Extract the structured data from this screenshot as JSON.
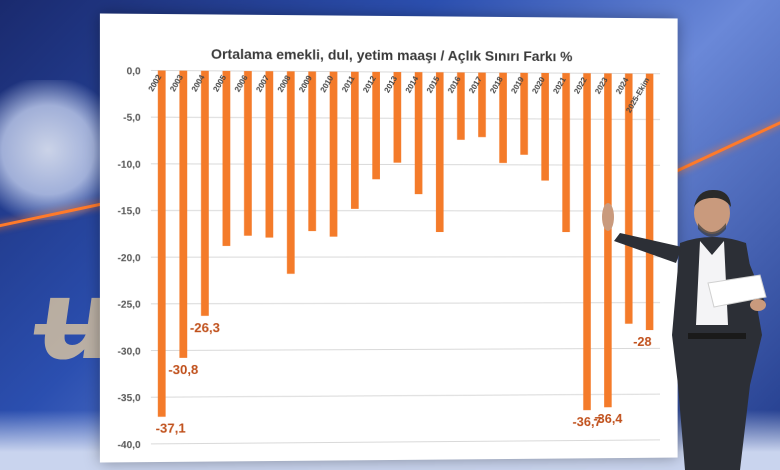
{
  "chart_data": {
    "type": "bar",
    "title": "Ortalama emekli, dul, yetim maaşı / Açlık Sınırı Farkı %",
    "xlabel": "",
    "ylabel": "",
    "ylim": [
      -40,
      0
    ],
    "yticks": [
      "0,0",
      "-5,0",
      "-10,0",
      "-15,0",
      "-20,0",
      "-25,0",
      "-30,0",
      "-35,0",
      "-40,0"
    ],
    "categories": [
      "2002",
      "2003",
      "2004",
      "2005",
      "2006",
      "2007",
      "2008",
      "2009",
      "2010",
      "2011",
      "2012",
      "2013",
      "2014",
      "2015",
      "2016",
      "2017",
      "2018",
      "2019",
      "2020",
      "2021",
      "2022",
      "2023",
      "2024",
      "2025-Ekim"
    ],
    "values": [
      -37.1,
      -30.8,
      -26.3,
      -18.8,
      -17.7,
      -17.9,
      -21.8,
      -17.2,
      -17.8,
      -14.8,
      -11.6,
      -9.8,
      -13.2,
      -17.3,
      -7.3,
      -7.0,
      -9.8,
      -8.9,
      -11.7,
      -17.3,
      -36.7,
      -36.4,
      -27.3,
      -28.0
    ],
    "data_labels": [
      {
        "index": 0,
        "text": "-37,1"
      },
      {
        "index": 1,
        "text": "-30,8"
      },
      {
        "index": 2,
        "text": "-26,3"
      },
      {
        "index": 20,
        "text": "-36,7"
      },
      {
        "index": 21,
        "text": "-36,4"
      },
      {
        "index": 23,
        "text": "-28"
      }
    ],
    "grid": true,
    "bar_color": "#f47b2a",
    "label_color": "#c0501b"
  }
}
